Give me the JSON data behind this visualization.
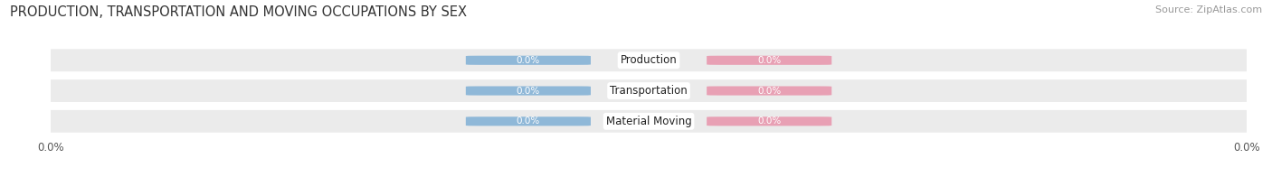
{
  "title": "PRODUCTION, TRANSPORTATION AND MOVING OCCUPATIONS BY SEX",
  "source_text": "Source: ZipAtlas.com",
  "categories": [
    "Production",
    "Transportation",
    "Material Moving"
  ],
  "male_values": [
    0.0,
    0.0,
    0.0
  ],
  "female_values": [
    0.0,
    0.0,
    0.0
  ],
  "male_color": "#8fb8d8",
  "female_color": "#e8a0b4",
  "row_bg_color": "#ebebeb",
  "bar_label_color": "white",
  "category_label_color": "#222222",
  "title_fontsize": 10.5,
  "source_fontsize": 8,
  "bar_label_fontsize": 7.5,
  "category_fontsize": 8.5,
  "legend_fontsize": 9,
  "axis_tick_fontsize": 8.5,
  "axis_label_value": "0.0%",
  "background_color": "#ffffff"
}
